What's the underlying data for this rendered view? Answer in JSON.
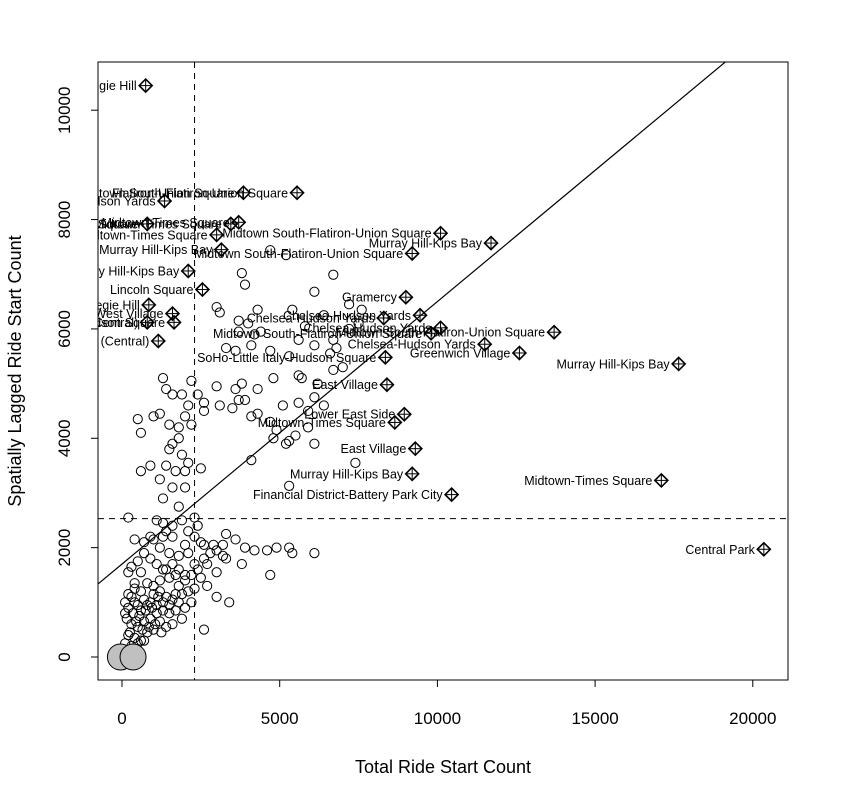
{
  "chart_data": {
    "type": "scatter",
    "title": "",
    "xlabel": "Total Ride Start Count",
    "ylabel": "Spatially Lagged Ride Start Count",
    "xlim": [
      -800,
      21000
    ],
    "ylim": [
      -400,
      10850
    ],
    "x_ticks": [
      0,
      5000,
      10000,
      15000,
      20000
    ],
    "y_ticks": [
      0,
      2000,
      4000,
      6000,
      8000,
      10000
    ],
    "x_tick_labels": [
      "0",
      "5000",
      "10000",
      "15000",
      "20000"
    ],
    "y_tick_labels": [
      "0",
      "2000",
      "4000",
      "6000",
      "8000",
      "10000"
    ],
    "grid": false,
    "mean_x": 2300,
    "mean_y": 2530,
    "regression": {
      "intercept": 1700,
      "slope": 0.48
    },
    "influential": [
      {
        "x": 750,
        "y": 10450,
        "label": "Carnegie Hill"
      },
      {
        "x": 3850,
        "y": 8490,
        "label": "Flatiron-Union Square"
      },
      {
        "x": 5550,
        "y": 8490,
        "label": "Midtown South-Flatiron-Union Square"
      },
      {
        "x": 1350,
        "y": 8340,
        "label": "Chelsea-Hudson Yards"
      },
      {
        "x": 3700,
        "y": 7950,
        "label": "Midtown-Times Square"
      },
      {
        "x": 3450,
        "y": 7920,
        "label": "Midtown-Times Square"
      },
      {
        "x": 800,
        "y": 7920,
        "label": "Midtown-Times Square"
      },
      {
        "x": 10100,
        "y": 7750,
        "label": "Midtown South-Flatiron-Union Square"
      },
      {
        "x": 3000,
        "y": 7720,
        "label": "Midtown-Times Square"
      },
      {
        "x": 11700,
        "y": 7570,
        "label": "Murray Hill-Kips Bay"
      },
      {
        "x": 9200,
        "y": 7380,
        "label": "Midtown South-Flatiron-Union Square"
      },
      {
        "x": 3150,
        "y": 7450,
        "label": "Murray Hill-Kips Bay"
      },
      {
        "x": 2100,
        "y": 7060,
        "label": "Murray Hill-Kips Bay"
      },
      {
        "x": 2550,
        "y": 6720,
        "label": "Lincoln Square"
      },
      {
        "x": 9000,
        "y": 6580,
        "label": "Gramercy"
      },
      {
        "x": 850,
        "y": 6440,
        "label": "Carnegie Hill"
      },
      {
        "x": 9450,
        "y": 6250,
        "label": "Chelsea-Hudson Yards"
      },
      {
        "x": 8300,
        "y": 6200,
        "label": "Chelsea-Hudson Yards"
      },
      {
        "x": 1600,
        "y": 6280,
        "label": "West Village"
      },
      {
        "x": 1650,
        "y": 6120,
        "label": "SoHo-Little Italy-Hudson Square"
      },
      {
        "x": 800,
        "y": 6120,
        "label": "Upper West Side (Central)"
      },
      {
        "x": 10100,
        "y": 6020,
        "label": "Chelsea-Hudson Yards"
      },
      {
        "x": 9800,
        "y": 5920,
        "label": "Midtown South-Flatiron-Union Square"
      },
      {
        "x": 13700,
        "y": 5940,
        "label": "Midtown South-Flatiron-Union Square"
      },
      {
        "x": 1150,
        "y": 5780,
        "label": "Upper West Side (Central)"
      },
      {
        "x": 11500,
        "y": 5720,
        "label": "Chelsea-Hudson Yards"
      },
      {
        "x": 12600,
        "y": 5560,
        "label": "Greenwich Village"
      },
      {
        "x": 8350,
        "y": 5480,
        "label": "SoHo-Little Italy-Hudson Square"
      },
      {
        "x": 17650,
        "y": 5360,
        "label": "Murray Hill-Kips Bay"
      },
      {
        "x": 8400,
        "y": 4980,
        "label": "East Village"
      },
      {
        "x": 8950,
        "y": 4440,
        "label": "Lower East Side"
      },
      {
        "x": 8650,
        "y": 4290,
        "label": "Midtown-Times Square"
      },
      {
        "x": 9300,
        "y": 3810,
        "label": "East Village"
      },
      {
        "x": 9200,
        "y": 3350,
        "label": "Murray Hill-Kips Bay"
      },
      {
        "x": 17100,
        "y": 3230,
        "label": "Midtown-Times Square"
      },
      {
        "x": 10450,
        "y": 2970,
        "label": "Financial District-Battery Park City"
      },
      {
        "x": 20350,
        "y": 1970,
        "label": "Central Park"
      }
    ],
    "large_points": [
      {
        "x": -50,
        "y": 0
      },
      {
        "x": 350,
        "y": 0
      }
    ],
    "points": [
      [
        6700,
        6990
      ],
      [
        3800,
        7020
      ],
      [
        3900,
        6810
      ],
      [
        4700,
        7440
      ],
      [
        5200,
        7350
      ],
      [
        6100,
        6680
      ],
      [
        3000,
        6400
      ],
      [
        3100,
        6300
      ],
      [
        4300,
        6350
      ],
      [
        5400,
        6350
      ],
      [
        6400,
        6250
      ],
      [
        7200,
        6450
      ],
      [
        7600,
        6350
      ],
      [
        4000,
        6100
      ],
      [
        3700,
        6150
      ],
      [
        5800,
        6050
      ],
      [
        7500,
        6100
      ],
      [
        7200,
        6000
      ],
      [
        4200,
        5900
      ],
      [
        4400,
        5950
      ],
      [
        3700,
        5950
      ],
      [
        3300,
        5650
      ],
      [
        3600,
        5600
      ],
      [
        4100,
        5700
      ],
      [
        4700,
        5600
      ],
      [
        5300,
        5500
      ],
      [
        5600,
        5800
      ],
      [
        6100,
        5700
      ],
      [
        6700,
        5800
      ],
      [
        6800,
        5650
      ],
      [
        6600,
        5550
      ],
      [
        7000,
        5300
      ],
      [
        6700,
        5250
      ],
      [
        5700,
        5100
      ],
      [
        6200,
        5000
      ],
      [
        5600,
        5150
      ],
      [
        4800,
        5100
      ],
      [
        4300,
        4900
      ],
      [
        3800,
        5000
      ],
      [
        3600,
        4900
      ],
      [
        3000,
        4950
      ],
      [
        2600,
        4650
      ],
      [
        2100,
        4600
      ],
      [
        2200,
        5050
      ],
      [
        1900,
        4800
      ],
      [
        1300,
        5100
      ],
      [
        1400,
        4900
      ],
      [
        1600,
        4800
      ],
      [
        1200,
        4450
      ],
      [
        1000,
        4400
      ],
      [
        500,
        4350
      ],
      [
        600,
        4100
      ],
      [
        1500,
        4250
      ],
      [
        1600,
        3900
      ],
      [
        1800,
        4000
      ],
      [
        1800,
        4200
      ],
      [
        2000,
        4400
      ],
      [
        2200,
        4250
      ],
      [
        1500,
        3800
      ],
      [
        1900,
        3700
      ],
      [
        2000,
        3400
      ],
      [
        2100,
        3550
      ],
      [
        1700,
        3400
      ],
      [
        1400,
        3500
      ],
      [
        1200,
        3250
      ],
      [
        900,
        3500
      ],
      [
        600,
        3400
      ],
      [
        1600,
        3100
      ],
      [
        1300,
        2900
      ],
      [
        1800,
        2750
      ],
      [
        2000,
        3100
      ],
      [
        2500,
        3450
      ],
      [
        2400,
        4800
      ],
      [
        2600,
        4500
      ],
      [
        3100,
        4600
      ],
      [
        3500,
        4550
      ],
      [
        3700,
        4700
      ],
      [
        3900,
        4700
      ],
      [
        4100,
        4400
      ],
      [
        4300,
        4450
      ],
      [
        4700,
        4300
      ],
      [
        4900,
        4150
      ],
      [
        5100,
        4600
      ],
      [
        5600,
        4650
      ],
      [
        5900,
        4500
      ],
      [
        6100,
        4750
      ],
      [
        6400,
        4600
      ],
      [
        5900,
        4200
      ],
      [
        5500,
        4050
      ],
      [
        5200,
        3900
      ],
      [
        4800,
        4000
      ],
      [
        5300,
        3950
      ],
      [
        6100,
        3900
      ],
      [
        7400,
        3550
      ],
      [
        5300,
        3130
      ],
      [
        4100,
        3600
      ],
      [
        2300,
        2550
      ],
      [
        2400,
        2400
      ],
      [
        2100,
        2300
      ],
      [
        1900,
        2500
      ],
      [
        1600,
        2400
      ],
      [
        1300,
        2200
      ],
      [
        1000,
        2150
      ],
      [
        700,
        2100
      ],
      [
        400,
        2150
      ],
      [
        200,
        2550
      ],
      [
        3300,
        2250
      ],
      [
        3600,
        2150
      ],
      [
        3900,
        2000
      ],
      [
        4200,
        1950
      ],
      [
        4600,
        1950
      ],
      [
        4900,
        2000
      ],
      [
        5300,
        2000
      ],
      [
        5400,
        1900
      ],
      [
        6100,
        1900
      ],
      [
        4700,
        1500
      ],
      [
        3800,
        1700
      ],
      [
        3300,
        1800
      ],
      [
        3000,
        1550
      ],
      [
        2700,
        1300
      ],
      [
        3000,
        1100
      ],
      [
        3400,
        1000
      ],
      [
        2600,
        500
      ],
      [
        2300,
        1700
      ],
      [
        2000,
        1400
      ],
      [
        1800,
        1300
      ],
      [
        1700,
        1500
      ],
      [
        1500,
        1450
      ],
      [
        1300,
        1600
      ],
      [
        1100,
        1700
      ],
      [
        900,
        1800
      ],
      [
        700,
        1900
      ],
      [
        500,
        1750
      ],
      [
        300,
        1650
      ],
      [
        200,
        1550
      ],
      [
        400,
        1350
      ],
      [
        600,
        1200
      ],
      [
        800,
        1350
      ],
      [
        1000,
        1300
      ],
      [
        1200,
        1200
      ],
      [
        1400,
        1100
      ],
      [
        1600,
        1050
      ],
      [
        1800,
        1000
      ],
      [
        2000,
        900
      ],
      [
        2200,
        1000
      ],
      [
        1900,
        700
      ],
      [
        1600,
        600
      ],
      [
        1400,
        550
      ],
      [
        1200,
        650
      ],
      [
        1000,
        500
      ],
      [
        800,
        450
      ],
      [
        600,
        300
      ],
      [
        400,
        350
      ],
      [
        200,
        400
      ],
      [
        300,
        600
      ],
      [
        500,
        550
      ],
      [
        700,
        650
      ],
      [
        900,
        700
      ],
      [
        1100,
        800
      ],
      [
        1300,
        850
      ],
      [
        1500,
        800
      ],
      [
        1700,
        850
      ],
      [
        100,
        800
      ],
      [
        100,
        1000
      ],
      [
        300,
        1100
      ],
      [
        500,
        950
      ],
      [
        700,
        1050
      ],
      [
        900,
        1000
      ],
      [
        1100,
        950
      ],
      [
        1300,
        1000
      ],
      [
        1500,
        950
      ],
      [
        1700,
        1150
      ],
      [
        1900,
        1150
      ],
      [
        2100,
        1200
      ],
      [
        2300,
        1250
      ],
      [
        2500,
        1450
      ],
      [
        2700,
        1700
      ],
      [
        2100,
        1900
      ],
      [
        1800,
        1850
      ],
      [
        1500,
        1900
      ],
      [
        1200,
        2000
      ],
      [
        900,
        2200
      ],
      [
        1400,
        2300
      ],
      [
        2000,
        2050
      ],
      [
        2500,
        2100
      ],
      [
        2900,
        2050
      ],
      [
        3200,
        2050
      ],
      [
        600,
        1550
      ],
      [
        400,
        1250
      ],
      [
        200,
        1150
      ],
      [
        150,
        700
      ],
      [
        350,
        800
      ],
      [
        550,
        750
      ],
      [
        750,
        850
      ],
      [
        950,
        900
      ],
      [
        1150,
        1100
      ],
      [
        250,
        450
      ],
      [
        450,
        650
      ],
      [
        650,
        500
      ],
      [
        850,
        550
      ],
      [
        1050,
        600
      ],
      [
        1250,
        450
      ],
      [
        100,
        250
      ],
      [
        300,
        200
      ],
      [
        500,
        250
      ],
      [
        700,
        300
      ],
      [
        200,
        900
      ],
      [
        400,
        1000
      ],
      [
        600,
        850
      ],
      [
        800,
        950
      ],
      [
        1000,
        1150
      ],
      [
        1200,
        1400
      ],
      [
        1400,
        1600
      ],
      [
        1600,
        1700
      ],
      [
        1800,
        1600
      ],
      [
        2000,
        1500
      ],
      [
        2200,
        1500
      ],
      [
        2400,
        1600
      ],
      [
        2600,
        1800
      ],
      [
        2800,
        1900
      ],
      [
        3000,
        1950
      ],
      [
        3200,
        1850
      ],
      [
        1100,
        2500
      ],
      [
        1300,
        2450
      ],
      [
        1600,
        2200
      ],
      [
        2300,
        2200
      ],
      [
        2600,
        2050
      ]
    ]
  }
}
